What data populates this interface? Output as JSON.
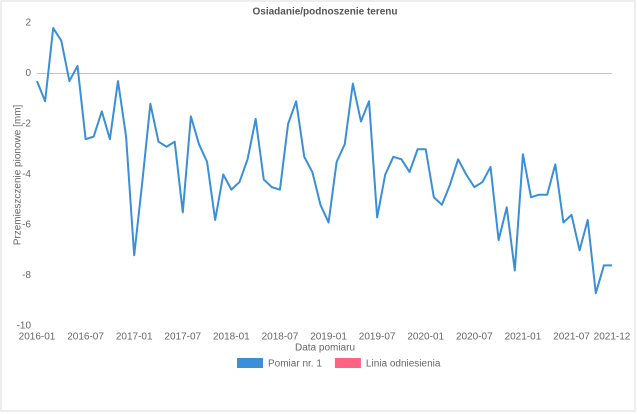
{
  "chart_data": {
    "type": "line",
    "title": "Osiadanie/podnoszenie terenu",
    "x_label": "Data pomiaru",
    "y_label": "Przemieszczenie pionowe [mm]",
    "x": [
      "2016-01",
      "2016-02",
      "2016-03",
      "2016-04",
      "2016-05",
      "2016-06",
      "2016-07",
      "2016-08",
      "2016-09",
      "2016-10",
      "2016-11",
      "2016-12",
      "2017-01",
      "2017-02",
      "2017-03",
      "2017-04",
      "2017-05",
      "2017-06",
      "2017-07",
      "2017-08",
      "2017-09",
      "2017-10",
      "2017-11",
      "2017-12",
      "2018-01",
      "2018-02",
      "2018-03",
      "2018-04",
      "2018-05",
      "2018-06",
      "2018-07",
      "2018-08",
      "2018-09",
      "2018-10",
      "2018-11",
      "2018-12",
      "2019-01",
      "2019-02",
      "2019-03",
      "2019-04",
      "2019-05",
      "2019-06",
      "2019-07",
      "2019-08",
      "2019-09",
      "2019-10",
      "2019-11",
      "2019-12",
      "2020-01",
      "2020-02",
      "2020-03",
      "2020-04",
      "2020-05",
      "2020-06",
      "2020-07",
      "2020-08",
      "2020-09",
      "2020-10",
      "2020-11",
      "2020-12",
      "2021-01",
      "2021-02",
      "2021-03",
      "2021-04",
      "2021-05",
      "2021-06",
      "2021-07",
      "2021-08",
      "2021-09",
      "2021-10",
      "2021-11",
      "2021-12"
    ],
    "series": [
      {
        "name": "Pomiar nr. 1",
        "color": "#3a8fd6",
        "values": [
          -0.3,
          -1.1,
          1.8,
          1.3,
          -0.3,
          0.3,
          -2.6,
          -2.5,
          -1.5,
          -2.6,
          -0.3,
          -2.5,
          -7.2,
          -4.3,
          -1.2,
          -2.7,
          -2.9,
          -2.7,
          -5.5,
          -1.7,
          -2.8,
          -3.5,
          -5.8,
          -4.0,
          -4.6,
          -4.3,
          -3.4,
          -1.8,
          -4.2,
          -4.5,
          -4.6,
          -2.0,
          -1.1,
          -3.3,
          -3.9,
          -5.2,
          -5.9,
          -3.5,
          -2.8,
          -0.4,
          -1.9,
          -1.1,
          -5.7,
          -4.0,
          -3.3,
          -3.4,
          -3.9,
          -3.0,
          -3.0,
          -4.9,
          -5.2,
          -4.4,
          -3.4,
          -4.0,
          -4.5,
          -4.3,
          -3.7,
          -6.6,
          -5.3,
          -7.8,
          -3.2,
          -4.9,
          -4.8,
          -4.8,
          -3.6,
          -5.9,
          -5.6,
          -7.0,
          -5.8,
          -8.7,
          -7.6,
          -7.6
        ]
      }
    ],
    "reference_line": {
      "name": "Linia odniesienia",
      "color": "#ff6384",
      "value": 0
    },
    "xlim": [
      "2016-01",
      "2021-12"
    ],
    "xticks": [
      "2016-01",
      "2016-07",
      "2017-01",
      "2017-07",
      "2018-01",
      "2018-07",
      "2019-01",
      "2019-07",
      "2020-01",
      "2020-07",
      "2021-01",
      "2021-07",
      "2021-12"
    ],
    "ylim": [
      -10,
      2
    ],
    "yticks": [
      2,
      0,
      -2,
      -4,
      -6,
      -8,
      -10
    ],
    "grid": false
  }
}
